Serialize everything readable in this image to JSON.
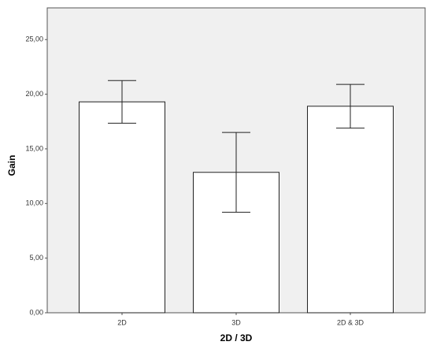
{
  "chart_data": {
    "type": "bar",
    "x_label": "2D / 3D",
    "y_label": "Gain",
    "categories": [
      "2D",
      "3D",
      "2D & 3D"
    ],
    "values": [
      19.3,
      12.85,
      18.9
    ],
    "errors": [
      1.95,
      3.65,
      2.0
    ],
    "color": "#ffffff",
    "ylim": [
      0,
      27.9
    ],
    "yticks": [
      {
        "value": 0,
        "label": "0,00"
      },
      {
        "value": 5,
        "label": "5,00"
      },
      {
        "value": 10,
        "label": "10,00"
      },
      {
        "value": 15,
        "label": "15,00"
      },
      {
        "value": 20,
        "label": "20,00"
      },
      {
        "value": 25,
        "label": "25,00"
      }
    ],
    "grid": false
  }
}
